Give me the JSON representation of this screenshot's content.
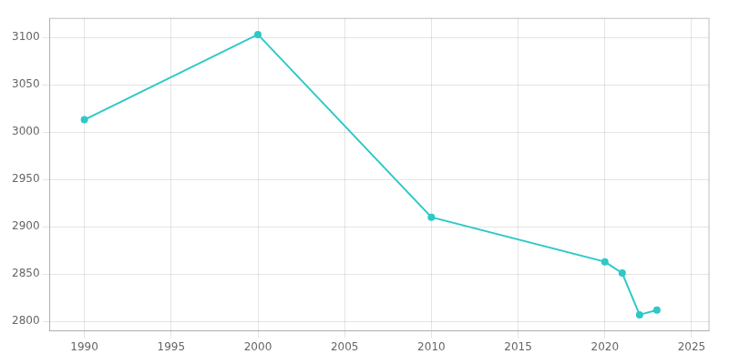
{
  "chart_data": {
    "type": "line",
    "x": [
      1990,
      2000,
      2010,
      2020,
      2021,
      2022,
      2023
    ],
    "values": [
      3013,
      3103,
      2910,
      2863,
      2851,
      2807,
      2812
    ],
    "color": "#2ec8c8",
    "marker": "circle",
    "xlim": [
      1988,
      2026
    ],
    "ylim": [
      2790,
      3120
    ],
    "xticks": [
      1990,
      1995,
      2000,
      2005,
      2010,
      2015,
      2020,
      2025
    ],
    "yticks": [
      2800,
      2850,
      2900,
      2950,
      3000,
      3050,
      3100
    ],
    "grid": true
  }
}
